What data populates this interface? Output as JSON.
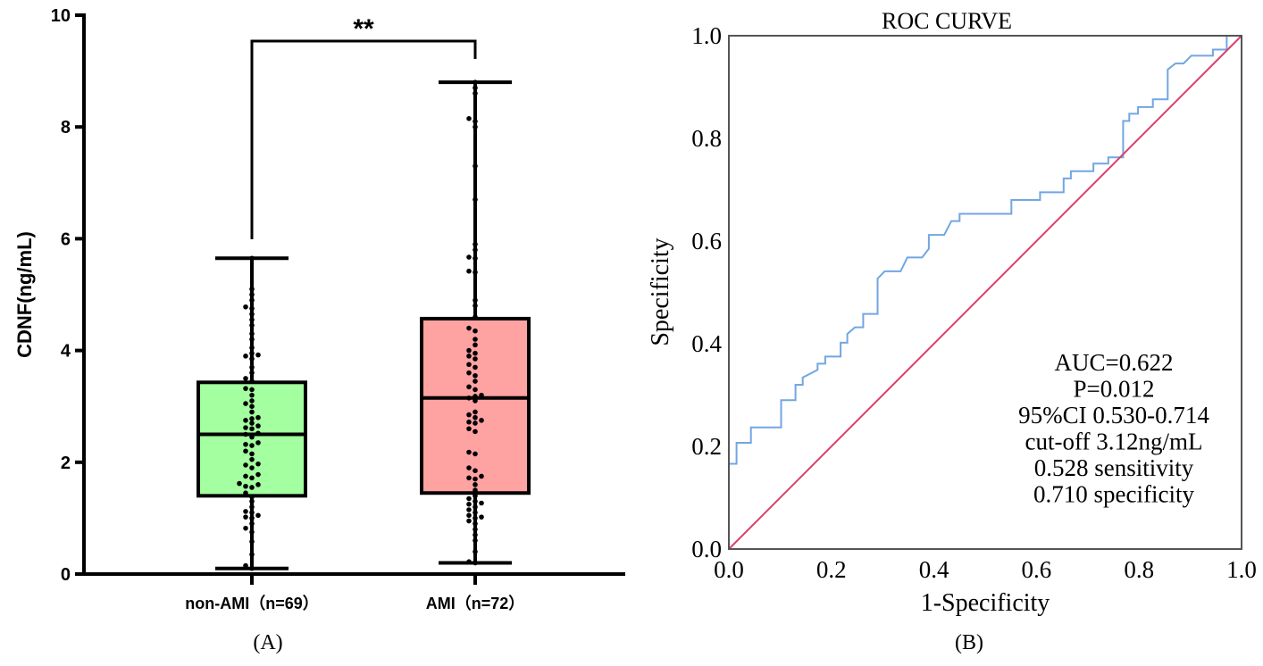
{
  "chart_data": [
    {
      "type": "box",
      "panel_label": "(A)",
      "title": "",
      "ylabel": "CDNF(ng/mL)",
      "xlabel": "",
      "ylim": [
        0,
        10
      ],
      "yticks": [
        "0",
        "2",
        "4",
        "6",
        "8",
        "10"
      ],
      "significance": "**",
      "colors": {
        "non-AMI": "#a3ff9f",
        "AMI": "#ffa2a2",
        "outline": "#000000"
      },
      "groups": [
        {
          "label": "non-AMI（n=69）",
          "min": 0.1,
          "q1": 1.4,
          "median": 2.5,
          "q3": 3.43,
          "max": 5.65,
          "points": [
            0.1,
            0.15,
            0.35,
            0.58,
            0.75,
            0.82,
            0.9,
            1.0,
            1.02,
            1.05,
            1.1,
            1.12,
            1.2,
            1.3,
            1.38,
            1.45,
            1.55,
            1.57,
            1.6,
            1.62,
            1.72,
            1.75,
            1.78,
            1.9,
            1.95,
            1.97,
            2.05,
            2.15,
            2.2,
            2.3,
            2.32,
            2.35,
            2.45,
            2.5,
            2.52,
            2.6,
            2.62,
            2.65,
            2.7,
            2.75,
            2.78,
            2.8,
            2.9,
            3.0,
            3.05,
            3.1,
            3.2,
            3.3,
            3.32,
            3.45,
            3.5,
            3.6,
            3.7,
            3.85,
            3.9,
            3.92,
            3.95,
            4.05,
            4.2,
            4.3,
            4.45,
            4.55,
            4.65,
            4.75,
            4.78,
            4.9,
            5.0,
            5.1,
            5.65
          ]
        },
        {
          "label": "AMI（n=72）",
          "min": 0.2,
          "q1": 1.45,
          "median": 3.15,
          "q3": 4.57,
          "max": 8.8,
          "points": [
            0.2,
            0.22,
            0.4,
            0.6,
            0.7,
            0.8,
            0.9,
            0.95,
            1.0,
            1.02,
            1.05,
            1.1,
            1.15,
            1.2,
            1.25,
            1.27,
            1.3,
            1.35,
            1.4,
            1.5,
            1.6,
            1.7,
            1.72,
            1.75,
            1.85,
            1.9,
            2.15,
            2.18,
            2.55,
            2.6,
            2.7,
            2.72,
            2.75,
            2.8,
            2.85,
            2.9,
            3.1,
            3.15,
            3.18,
            3.2,
            3.3,
            3.35,
            3.45,
            3.55,
            3.6,
            3.7,
            3.75,
            3.85,
            3.9,
            3.95,
            4.0,
            4.1,
            4.2,
            4.35,
            4.4,
            4.6,
            4.8,
            4.9,
            5.4,
            5.42,
            5.65,
            5.67,
            5.8,
            5.9,
            6.7,
            7.3,
            8.0,
            8.1,
            8.15,
            8.6,
            8.7,
            8.8
          ]
        }
      ]
    },
    {
      "type": "line",
      "panel_label": "(B)",
      "title": "ROC CURVE",
      "xlabel": "1-Specificity",
      "ylabel": "Specificity",
      "xlim": [
        0,
        1
      ],
      "ylim": [
        0,
        1
      ],
      "xticks": [
        "0.0",
        "0.2",
        "0.4",
        "0.6",
        "0.8",
        "1.0"
      ],
      "yticks": [
        "0.0",
        "0.2",
        "0.4",
        "0.6",
        "0.8",
        "1.0"
      ],
      "annotation": [
        "AUC=0.622",
        "P=0.012",
        "95%CI 0.530-0.714",
        "cut-off 3.12ng/mL",
        "0.528 sensitivity",
        "0.710 specificity"
      ],
      "series": [
        {
          "name": "ROC",
          "color": "#72a6e3",
          "x": [
            0,
            0,
            0.015,
            0.015,
            0.043,
            0.043,
            0.102,
            0.102,
            0.13,
            0.13,
            0.144,
            0.144,
            0.173,
            0.173,
            0.188,
            0.188,
            0.218,
            0.218,
            0.231,
            0.231,
            0.246,
            0.262,
            0.262,
            0.29,
            0.29,
            0.304,
            0.335,
            0.348,
            0.377,
            0.39,
            0.39,
            0.42,
            0.434,
            0.45,
            0.45,
            0.551,
            0.551,
            0.607,
            0.607,
            0.653,
            0.653,
            0.667,
            0.667,
            0.711,
            0.711,
            0.74,
            0.74,
            0.769,
            0.769,
            0.781,
            0.781,
            0.798,
            0.798,
            0.827,
            0.827,
            0.856,
            0.856,
            0.871,
            0.887,
            0.902,
            0.944,
            0.944,
            0.971,
            0.971,
            1.0
          ],
          "y": [
            0,
            0.166,
            0.166,
            0.207,
            0.207,
            0.237,
            0.237,
            0.29,
            0.29,
            0.32,
            0.32,
            0.334,
            0.349,
            0.361,
            0.361,
            0.375,
            0.375,
            0.402,
            0.402,
            0.419,
            0.432,
            0.432,
            0.458,
            0.458,
            0.527,
            0.541,
            0.541,
            0.568,
            0.568,
            0.585,
            0.612,
            0.612,
            0.639,
            0.639,
            0.653,
            0.653,
            0.68,
            0.68,
            0.695,
            0.695,
            0.722,
            0.722,
            0.736,
            0.736,
            0.751,
            0.751,
            0.763,
            0.763,
            0.834,
            0.834,
            0.848,
            0.848,
            0.861,
            0.861,
            0.876,
            0.876,
            0.934,
            0.946,
            0.946,
            0.961,
            0.961,
            0.973,
            0.973,
            1.0,
            1.0
          ]
        },
        {
          "name": "Reference",
          "color": "#d9416b",
          "x": [
            0,
            1
          ],
          "y": [
            0,
            1
          ]
        }
      ]
    }
  ]
}
